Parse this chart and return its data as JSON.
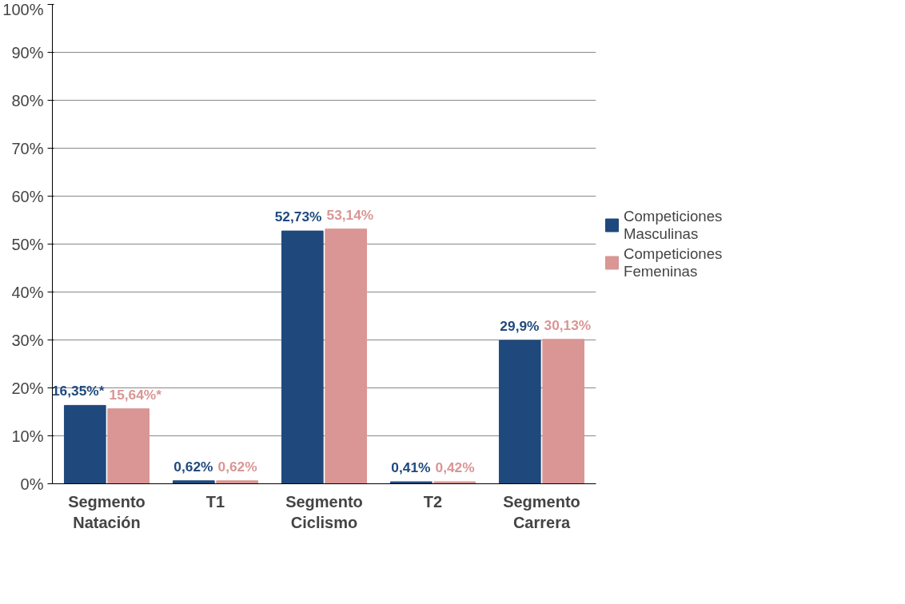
{
  "chart_data": {
    "type": "bar",
    "categories": [
      "Segmento Natación",
      "T1",
      "Segmento Ciclismo",
      "T2",
      "Segmento Carrera"
    ],
    "series": [
      {
        "name": "Competiciones Masculinas",
        "color": "#1f497d",
        "values": [
          16.35,
          0.62,
          52.73,
          0.41,
          29.9
        ],
        "value_labels": [
          "16,35%*",
          "0,62%",
          "52,73%",
          "0,41%",
          "29,9%"
        ]
      },
      {
        "name": "Competiciones Femeninas",
        "color": "#d99694",
        "values": [
          15.64,
          0.62,
          53.14,
          0.42,
          30.13
        ],
        "value_labels": [
          "15,64%*",
          "0,62%",
          "53,14%",
          "0,42%",
          "30,13%"
        ]
      }
    ],
    "ylim": [
      0,
      100
    ],
    "yticks": [
      {
        "value": 0,
        "label": "0%"
      },
      {
        "value": 10,
        "label": "10%"
      },
      {
        "value": 20,
        "label": "20%"
      },
      {
        "value": 30,
        "label": "30%"
      },
      {
        "value": 40,
        "label": "40%"
      },
      {
        "value": 50,
        "label": "50%"
      },
      {
        "value": 60,
        "label": "60%"
      },
      {
        "value": 70,
        "label": "70%"
      },
      {
        "value": 80,
        "label": "80%"
      },
      {
        "value": 90,
        "label": "90%"
      },
      {
        "value": 100,
        "label": "100%"
      }
    ],
    "grid": "y",
    "legend": "right"
  }
}
